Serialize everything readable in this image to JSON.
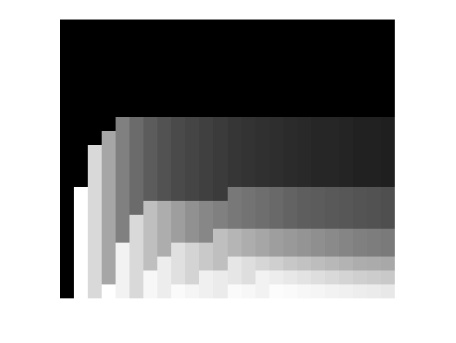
{
  "chart_data": {
    "type": "heatmap",
    "x": [
      0,
      1,
      2,
      3,
      4,
      5,
      6,
      7,
      8,
      9,
      10,
      11,
      12,
      13,
      14,
      15,
      16,
      17,
      18,
      19,
      20,
      21,
      22,
      23
    ],
    "y": [
      0,
      1,
      2,
      3,
      4,
      5,
      6,
      7,
      8,
      9,
      10,
      11,
      12,
      13,
      14,
      15,
      16,
      17,
      18,
      19
    ],
    "xlim": [
      -0.5,
      23.5
    ],
    "ylim": [
      19.5,
      -0.5
    ],
    "zlim": [
      0,
      1
    ],
    "tick_labels": false,
    "grid": false,
    "z": [
      [
        0,
        0,
        0,
        0,
        0,
        0,
        0,
        0,
        0,
        0,
        0,
        0,
        0,
        0,
        0,
        0,
        0,
        0,
        0,
        0,
        0,
        0,
        0,
        0
      ],
      [
        0,
        0,
        0,
        0,
        0,
        0,
        0,
        0,
        0,
        0,
        0,
        0,
        0,
        0,
        0,
        0,
        0,
        0,
        0,
        0,
        0,
        0,
        0,
        0
      ],
      [
        0,
        0,
        0,
        0,
        0,
        0,
        0,
        0,
        0,
        0,
        0,
        0,
        0,
        0,
        0,
        0,
        0,
        0,
        0,
        0,
        0,
        0,
        0,
        0
      ],
      [
        0,
        0,
        0,
        0,
        0,
        0,
        0,
        0,
        0,
        0,
        0,
        0,
        0,
        0,
        0,
        0,
        0,
        0,
        0,
        0,
        0,
        0,
        0,
        0
      ],
      [
        0,
        0,
        0,
        0,
        0,
        0,
        0,
        0,
        0,
        0,
        0,
        0,
        0,
        0,
        0,
        0,
        0,
        0,
        0,
        0,
        0,
        0,
        0,
        0
      ],
      [
        0,
        0,
        0,
        0,
        0,
        0,
        0,
        0,
        0,
        0,
        0,
        0,
        0,
        0,
        0,
        0,
        0,
        0,
        0,
        0,
        0,
        0,
        0,
        0
      ],
      [
        0,
        0,
        0,
        0,
        0,
        0,
        0,
        0,
        0,
        0,
        0,
        0,
        0,
        0,
        0,
        0,
        0,
        0,
        0,
        0,
        0,
        0,
        0,
        0
      ],
      [
        0,
        0,
        0,
        0,
        0.5,
        0.42,
        0.36,
        0.32,
        0.29,
        0.27,
        0.25,
        0.23,
        0.21,
        0.2,
        0.19,
        0.18,
        0.17,
        0.16,
        0.15,
        0.15,
        0.14,
        0.13,
        0.13,
        0.12
      ],
      [
        0,
        0,
        0,
        0.65,
        0.5,
        0.42,
        0.36,
        0.32,
        0.29,
        0.27,
        0.25,
        0.23,
        0.21,
        0.2,
        0.19,
        0.18,
        0.17,
        0.16,
        0.15,
        0.15,
        0.14,
        0.13,
        0.13,
        0.12
      ],
      [
        0,
        0,
        0.85,
        0.65,
        0.5,
        0.42,
        0.36,
        0.32,
        0.29,
        0.27,
        0.25,
        0.23,
        0.21,
        0.2,
        0.19,
        0.18,
        0.17,
        0.16,
        0.15,
        0.15,
        0.14,
        0.13,
        0.13,
        0.12
      ],
      [
        0,
        0,
        0.85,
        0.65,
        0.5,
        0.42,
        0.36,
        0.32,
        0.29,
        0.27,
        0.25,
        0.23,
        0.21,
        0.2,
        0.19,
        0.18,
        0.17,
        0.16,
        0.15,
        0.15,
        0.14,
        0.13,
        0.13,
        0.12
      ],
      [
        0,
        0,
        0.85,
        0.65,
        0.5,
        0.42,
        0.36,
        0.32,
        0.29,
        0.27,
        0.25,
        0.23,
        0.21,
        0.2,
        0.19,
        0.18,
        0.17,
        0.16,
        0.15,
        0.15,
        0.14,
        0.13,
        0.13,
        0.12
      ],
      [
        0,
        1,
        0.85,
        0.65,
        0.5,
        0.42,
        0.36,
        0.32,
        0.29,
        0.27,
        0.25,
        0.23,
        0.47,
        0.45,
        0.43,
        0.41,
        0.39,
        0.37,
        0.36,
        0.35,
        0.34,
        0.33,
        0.32,
        0.31
      ],
      [
        0,
        1,
        0.85,
        0.65,
        0.5,
        0.42,
        0.75,
        0.68,
        0.62,
        0.57,
        0.53,
        0.5,
        0.47,
        0.45,
        0.43,
        0.41,
        0.39,
        0.37,
        0.36,
        0.35,
        0.34,
        0.33,
        0.32,
        0.31
      ],
      [
        0,
        1,
        0.85,
        0.65,
        0.5,
        0.85,
        0.75,
        0.68,
        0.62,
        0.57,
        0.53,
        0.5,
        0.47,
        0.45,
        0.43,
        0.41,
        0.39,
        0.37,
        0.36,
        0.35,
        0.34,
        0.33,
        0.32,
        0.31
      ],
      [
        0,
        1,
        0.85,
        0.65,
        0.5,
        0.85,
        0.75,
        0.68,
        0.62,
        0.57,
        0.53,
        0.75,
        0.71,
        0.68,
        0.65,
        0.62,
        0.6,
        0.58,
        0.56,
        0.54,
        0.52,
        0.5,
        0.49,
        0.48
      ],
      [
        0,
        1,
        0.85,
        0.65,
        0.95,
        0.85,
        0.75,
        0.68,
        0.88,
        0.83,
        0.79,
        0.75,
        0.71,
        0.68,
        0.65,
        0.62,
        0.6,
        0.58,
        0.56,
        0.54,
        0.52,
        0.5,
        0.49,
        0.48
      ],
      [
        0,
        1,
        0.85,
        0.65,
        0.95,
        0.85,
        0.75,
        0.93,
        0.88,
        0.83,
        0.79,
        0.75,
        0.9,
        0.87,
        0.84,
        0.81,
        0.78,
        0.76,
        0.74,
        0.72,
        0.7,
        0.68,
        0.67,
        0.66
      ],
      [
        0,
        1,
        0.85,
        0.65,
        0.95,
        0.85,
        0.97,
        0.93,
        0.88,
        0.83,
        0.94,
        0.92,
        0.9,
        0.87,
        0.95,
        0.93,
        0.91,
        0.89,
        0.87,
        0.85,
        0.83,
        0.81,
        0.8,
        0.79
      ],
      [
        0,
        1,
        0.85,
        1,
        0.95,
        0.85,
        0.97,
        0.93,
        0.98,
        0.96,
        0.94,
        0.92,
        0.98,
        0.97,
        0.95,
        0.99,
        0.98,
        0.97,
        0.96,
        0.95,
        0.94,
        0.93,
        0.92,
        0.91
      ]
    ]
  }
}
